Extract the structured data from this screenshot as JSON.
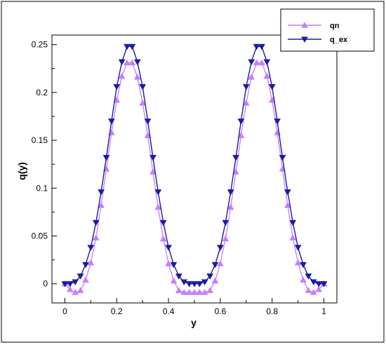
{
  "chart_data": {
    "type": "line",
    "title": "",
    "xlabel": "y",
    "ylabel": "q(y)",
    "xlim": [
      -0.05,
      1.05
    ],
    "ylim": [
      -0.02,
      0.26
    ],
    "x_ticks": [
      0,
      0.2,
      0.4,
      0.6,
      0.8,
      1
    ],
    "x_tick_labels": [
      "0",
      "0.2",
      "0.4",
      "0.6",
      "0.8",
      "1"
    ],
    "y_ticks": [
      0,
      0.05,
      0.1,
      0.15,
      0.2,
      0.25
    ],
    "y_tick_labels": [
      "0",
      "0.05",
      "0.1",
      "0.15",
      "0.2",
      "0.25"
    ],
    "grid": false,
    "legend_position": "top-right",
    "series": [
      {
        "name": "qn",
        "color": "#c77dff",
        "marker": "triangle-up",
        "x": [
          0,
          0.02,
          0.04,
          0.06,
          0.08,
          0.1,
          0.12,
          0.14,
          0.16,
          0.18,
          0.2,
          0.22,
          0.24,
          0.26,
          0.28,
          0.3,
          0.32,
          0.34,
          0.36,
          0.38,
          0.4,
          0.42,
          0.44,
          0.46,
          0.48,
          0.5,
          0.52,
          0.54,
          0.56,
          0.58,
          0.6,
          0.62,
          0.64,
          0.66,
          0.68,
          0.7,
          0.72,
          0.74,
          0.76,
          0.78,
          0.8,
          0.82,
          0.84,
          0.86,
          0.88,
          0.9,
          0.92,
          0.94,
          0.96,
          0.98,
          1
        ],
        "y": [
          0.0,
          -0.006,
          -0.009,
          -0.007,
          0.004,
          0.022,
          0.048,
          0.082,
          0.12,
          0.158,
          0.192,
          0.217,
          0.231,
          0.231,
          0.216,
          0.189,
          0.155,
          0.117,
          0.08,
          0.047,
          0.021,
          0.003,
          -0.007,
          -0.009,
          -0.009,
          -0.009,
          -0.009,
          -0.009,
          -0.007,
          0.003,
          0.021,
          0.047,
          0.08,
          0.117,
          0.155,
          0.189,
          0.216,
          0.231,
          0.231,
          0.217,
          0.192,
          0.158,
          0.12,
          0.082,
          0.048,
          0.022,
          0.004,
          -0.007,
          -0.009,
          -0.006,
          0.0
        ]
      },
      {
        "name": "q_ex",
        "color": "#1a1aa8",
        "marker": "triangle-down",
        "x": [
          0,
          0.02,
          0.04,
          0.06,
          0.08,
          0.1,
          0.12,
          0.14,
          0.16,
          0.18,
          0.2,
          0.22,
          0.24,
          0.26,
          0.28,
          0.3,
          0.32,
          0.34,
          0.36,
          0.38,
          0.4,
          0.42,
          0.44,
          0.46,
          0.48,
          0.5,
          0.52,
          0.54,
          0.56,
          0.58,
          0.6,
          0.62,
          0.64,
          0.66,
          0.68,
          0.7,
          0.72,
          0.74,
          0.76,
          0.78,
          0.8,
          0.82,
          0.84,
          0.86,
          0.88,
          0.9,
          0.92,
          0.94,
          0.96,
          0.98,
          1
        ],
        "y": [
          0.0,
          0.0,
          0.002,
          0.008,
          0.02,
          0.038,
          0.064,
          0.096,
          0.132,
          0.17,
          0.206,
          0.232,
          0.248,
          0.248,
          0.232,
          0.206,
          0.17,
          0.132,
          0.096,
          0.064,
          0.038,
          0.02,
          0.008,
          0.002,
          0.0,
          0.0,
          0.0,
          0.002,
          0.008,
          0.02,
          0.038,
          0.064,
          0.096,
          0.132,
          0.17,
          0.206,
          0.232,
          0.248,
          0.248,
          0.232,
          0.206,
          0.17,
          0.132,
          0.096,
          0.064,
          0.038,
          0.02,
          0.008,
          0.002,
          0.0,
          0.0
        ]
      }
    ]
  }
}
